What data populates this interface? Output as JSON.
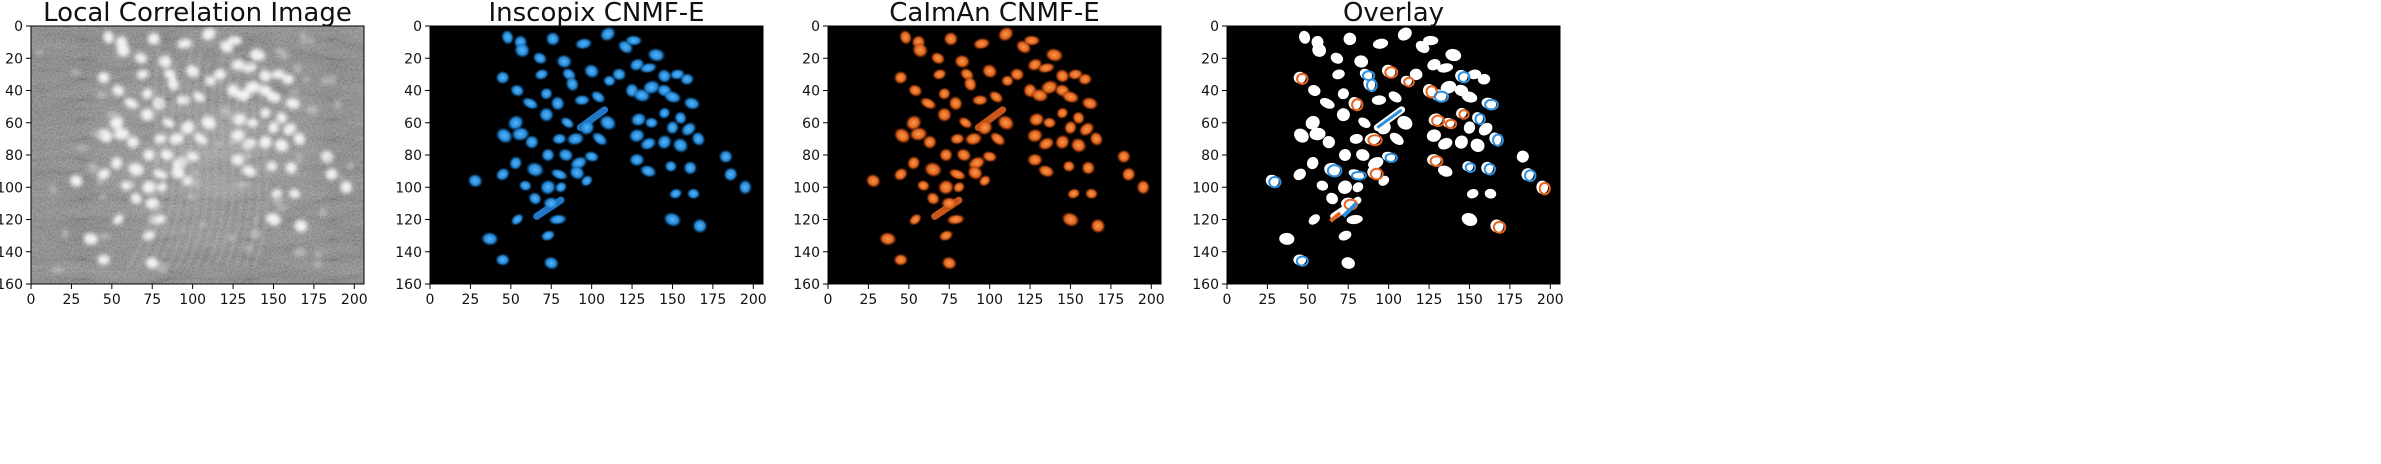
{
  "chart_data": [
    {
      "type": "heatmap",
      "title": "Local Correlation Image",
      "colormap": "gray",
      "xlim": [
        0,
        206
      ],
      "ylim": [
        160,
        0
      ],
      "xticks": [
        0,
        25,
        50,
        75,
        100,
        125,
        150,
        175,
        200
      ],
      "yticks": [
        0,
        20,
        40,
        60,
        80,
        100,
        120,
        140,
        160
      ]
    },
    {
      "type": "heatmap",
      "title": "Inscopix CNMF-E",
      "colormap": "blue",
      "xlim": [
        0,
        206
      ],
      "ylim": [
        160,
        0
      ],
      "xticks": [
        0,
        25,
        50,
        75,
        100,
        125,
        150,
        175,
        200
      ],
      "yticks": [
        0,
        20,
        40,
        60,
        80,
        100,
        120,
        140,
        160
      ]
    },
    {
      "type": "heatmap",
      "title": "CaImAn CNMF-E",
      "colormap": "orange",
      "xlim": [
        0,
        206
      ],
      "ylim": [
        160,
        0
      ],
      "xticks": [
        0,
        25,
        50,
        75,
        100,
        125,
        150,
        175,
        200
      ],
      "yticks": [
        0,
        20,
        40,
        60,
        80,
        100,
        120,
        140,
        160
      ]
    },
    {
      "type": "heatmap",
      "title": "Overlay",
      "colormap": "overlay",
      "xlim": [
        0,
        206
      ],
      "ylim": [
        160,
        0
      ],
      "xticks": [
        0,
        25,
        50,
        75,
        100,
        125,
        150,
        175,
        200
      ],
      "yticks": [
        0,
        20,
        40,
        60,
        80,
        100,
        120,
        140,
        160
      ]
    }
  ],
  "cells": [
    [
      48,
      7
    ],
    [
      56,
      10
    ],
    [
      76,
      8
    ],
    [
      83,
      22
    ],
    [
      95,
      11
    ],
    [
      110,
      5
    ],
    [
      121,
      13
    ],
    [
      126,
      9
    ],
    [
      140,
      18
    ],
    [
      57,
      15
    ],
    [
      68,
      20
    ],
    [
      69,
      30
    ],
    [
      86,
      30
    ],
    [
      100,
      28
    ],
    [
      111,
      34
    ],
    [
      128,
      24
    ],
    [
      135,
      26
    ],
    [
      145,
      31
    ],
    [
      153,
      30
    ],
    [
      159,
      33
    ],
    [
      117,
      30
    ],
    [
      125,
      40
    ],
    [
      131,
      43
    ],
    [
      145,
      40
    ],
    [
      150,
      44
    ],
    [
      45,
      32
    ],
    [
      54,
      40
    ],
    [
      62,
      48
    ],
    [
      72,
      42
    ],
    [
      88,
      36
    ],
    [
      94,
      46
    ],
    [
      104,
      44
    ],
    [
      110,
      60
    ],
    [
      137,
      38
    ],
    [
      145,
      54
    ],
    [
      155,
      57
    ],
    [
      162,
      48
    ],
    [
      79,
      48
    ],
    [
      72,
      55
    ],
    [
      85,
      60
    ],
    [
      97,
      63
    ],
    [
      105,
      70
    ],
    [
      129,
      58
    ],
    [
      137,
      60
    ],
    [
      150,
      63
    ],
    [
      160,
      64
    ],
    [
      166,
      70
    ],
    [
      53,
      60
    ],
    [
      46,
      68
    ],
    [
      56,
      67
    ],
    [
      63,
      72
    ],
    [
      80,
      70
    ],
    [
      90,
      70
    ],
    [
      128,
      68
    ],
    [
      135,
      73
    ],
    [
      145,
      72
    ],
    [
      155,
      74
    ],
    [
      73,
      80
    ],
    [
      84,
      80
    ],
    [
      92,
      85
    ],
    [
      100,
      81
    ],
    [
      128,
      83
    ],
    [
      135,
      90
    ],
    [
      149,
      87
    ],
    [
      161,
      88
    ],
    [
      183,
      81
    ],
    [
      53,
      85
    ],
    [
      65,
      89
    ],
    [
      80,
      92
    ],
    [
      91,
      91
    ],
    [
      81,
      100
    ],
    [
      97,
      96
    ],
    [
      73,
      100
    ],
    [
      59,
      99
    ],
    [
      65,
      107
    ],
    [
      28,
      96
    ],
    [
      45,
      92
    ],
    [
      186,
      92
    ],
    [
      195,
      100
    ],
    [
      163,
      104
    ],
    [
      152,
      104
    ],
    [
      75,
      110
    ],
    [
      79,
      120
    ],
    [
      54,
      120
    ],
    [
      73,
      130
    ],
    [
      150,
      120
    ],
    [
      167,
      124
    ],
    [
      37,
      132
    ],
    [
      45,
      145
    ],
    [
      75,
      147
    ]
  ],
  "streaks": [
    [
      [
        93,
        63
      ],
      [
        108,
        52
      ]
    ],
    [
      [
        66,
        118
      ],
      [
        81,
        108
      ]
    ]
  ]
}
